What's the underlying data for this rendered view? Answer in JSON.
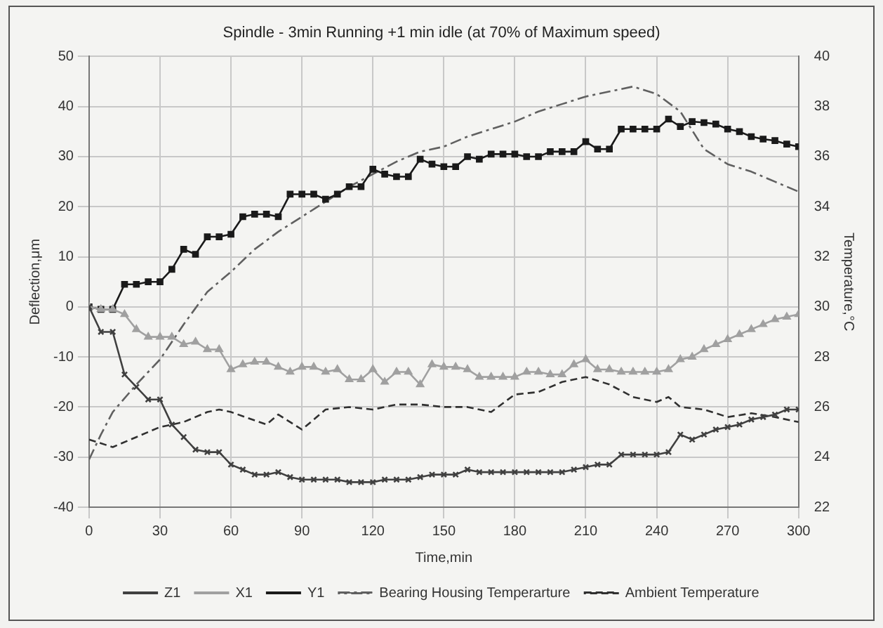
{
  "chart_data": {
    "type": "line",
    "title": "Spindle - 3min Running +1 min idle (at 70% of Maximum speed)",
    "xlabel": "Time,min",
    "ylabel": "Deflection,μm",
    "y2label": "Temperature,°C",
    "xlim": [
      0,
      300
    ],
    "xticks": [
      0,
      30,
      60,
      90,
      120,
      150,
      180,
      210,
      240,
      270,
      300
    ],
    "ylim": [
      -40,
      50
    ],
    "yticks": [
      -40,
      -30,
      -20,
      -10,
      0,
      10,
      20,
      30,
      40,
      50
    ],
    "y2lim": [
      22,
      40
    ],
    "y2ticks": [
      22,
      24,
      26,
      28,
      30,
      32,
      34,
      36,
      38,
      40
    ],
    "grid": true,
    "legend": "bottom",
    "x": [
      0,
      5,
      10,
      15,
      20,
      25,
      30,
      35,
      40,
      45,
      50,
      55,
      60,
      65,
      70,
      75,
      80,
      85,
      90,
      95,
      100,
      105,
      110,
      115,
      120,
      125,
      130,
      135,
      140,
      145,
      150,
      155,
      160,
      165,
      170,
      175,
      180,
      185,
      190,
      195,
      200,
      205,
      210,
      215,
      220,
      225,
      230,
      235,
      240,
      245,
      250,
      255,
      260,
      265,
      270,
      275,
      280,
      285,
      290,
      295,
      300
    ],
    "series": [
      {
        "name": "Z1",
        "color": "#404040",
        "marker": "cross",
        "line_style": "solid",
        "values": [
          0,
          -5,
          -5,
          -13.5,
          -16,
          -18.5,
          -18.5,
          -23.5,
          -26,
          -28.5,
          -29,
          -29,
          -31.5,
          -32.5,
          -33.5,
          -33.5,
          -33,
          -34,
          -34.5,
          -34.5,
          -34.5,
          -34.5,
          -35,
          -35,
          -35,
          -34.5,
          -34.5,
          -34.5,
          -34,
          -33.5,
          -33.5,
          -33.5,
          -32.5,
          -33,
          -33,
          -33,
          -33,
          -33,
          -33,
          -33,
          -33,
          -32.5,
          -32,
          -31.5,
          -31.5,
          -29.5,
          -29.5,
          -29.5,
          -29.5,
          -29,
          -25.5,
          -26.5,
          -25.5,
          -24.5,
          -24,
          -23.5,
          -22.5,
          -22,
          -21.5,
          -20.5,
          -20.5
        ]
      },
      {
        "name": "X1",
        "color": "#a0a0a0",
        "marker": "triangle",
        "line_style": "solid",
        "values": [
          0,
          -0.5,
          -0.5,
          -1.5,
          -4.5,
          -6,
          -6,
          -6,
          -7.5,
          -7,
          -8.5,
          -8.5,
          -12.5,
          -11.5,
          -11,
          -11,
          -12,
          -13,
          -12,
          -12,
          -13,
          -12.5,
          -14.5,
          -14.5,
          -12.5,
          -15,
          -13,
          -13,
          -15.5,
          -11.5,
          -12,
          -12,
          -12.5,
          -14,
          -14,
          -14,
          -14,
          -13,
          -13,
          -13.5,
          -13.5,
          -11.5,
          -10.5,
          -12.5,
          -12.5,
          -13,
          -13,
          -13,
          -13,
          -12.5,
          -10.5,
          -10,
          -8.5,
          -7.5,
          -6.5,
          -5.5,
          -4.5,
          -3.5,
          -2.5,
          -2,
          -1.5
        ]
      },
      {
        "name": "Y1",
        "color": "#1a1a1a",
        "marker": "square",
        "line_style": "solid",
        "values": [
          0,
          -0.5,
          -0.5,
          4.5,
          4.5,
          5,
          5,
          7.5,
          11.5,
          10.5,
          14,
          14,
          14.5,
          18,
          18.5,
          18.5,
          18,
          22.5,
          22.5,
          22.5,
          21.5,
          22.5,
          24,
          24,
          27.5,
          26.5,
          26,
          26,
          29.5,
          28.5,
          28,
          28,
          30,
          29.5,
          30.5,
          30.5,
          30.5,
          30,
          30,
          31,
          31,
          31,
          33,
          31.5,
          31.5,
          35.5,
          35.5,
          35.5,
          35.5,
          37.5,
          36,
          37,
          36.8,
          36.5,
          35.5,
          35,
          34,
          33.5,
          33.2,
          32.5,
          32
        ]
      },
      {
        "name": "Bearing Housing Temperarture",
        "color": "#606060",
        "marker": "none",
        "line_style": "dashdot",
        "axis": "y2",
        "x": [
          0,
          5,
          10,
          20,
          30,
          40,
          50,
          60,
          70,
          80,
          90,
          100,
          110,
          120,
          130,
          140,
          150,
          160,
          170,
          180,
          190,
          200,
          210,
          220,
          230,
          240,
          250,
          260,
          270,
          280,
          290,
          300
        ],
        "values": [
          23.9,
          24.9,
          25.8,
          26.9,
          27.9,
          29.3,
          30.6,
          31.4,
          32.3,
          33,
          33.6,
          34.2,
          34.8,
          35.3,
          35.8,
          36.2,
          36.4,
          36.8,
          37.1,
          37.4,
          37.8,
          38.1,
          38.4,
          38.6,
          38.8,
          38.5,
          37.8,
          36.3,
          35.7,
          35.4,
          35,
          34.6
        ]
      },
      {
        "name": "Ambient Temperature",
        "color": "#303030",
        "marker": "none",
        "line_style": "dashed",
        "axis": "y2",
        "x": [
          0,
          10,
          20,
          30,
          40,
          50,
          55,
          60,
          75,
          80,
          90,
          100,
          110,
          120,
          130,
          140,
          150,
          160,
          170,
          180,
          190,
          200,
          210,
          220,
          230,
          240,
          245,
          250,
          260,
          270,
          280,
          290,
          300
        ],
        "values": [
          24.7,
          24.4,
          24.8,
          25.2,
          25.4,
          25.8,
          25.9,
          25.8,
          25.3,
          25.7,
          25.1,
          25.9,
          26,
          25.9,
          26.1,
          26.1,
          26,
          26,
          25.8,
          26.5,
          26.6,
          27,
          27.2,
          26.9,
          26.4,
          26.2,
          26.4,
          26,
          25.9,
          25.6,
          25.75,
          25.6,
          25.4
        ]
      }
    ]
  }
}
